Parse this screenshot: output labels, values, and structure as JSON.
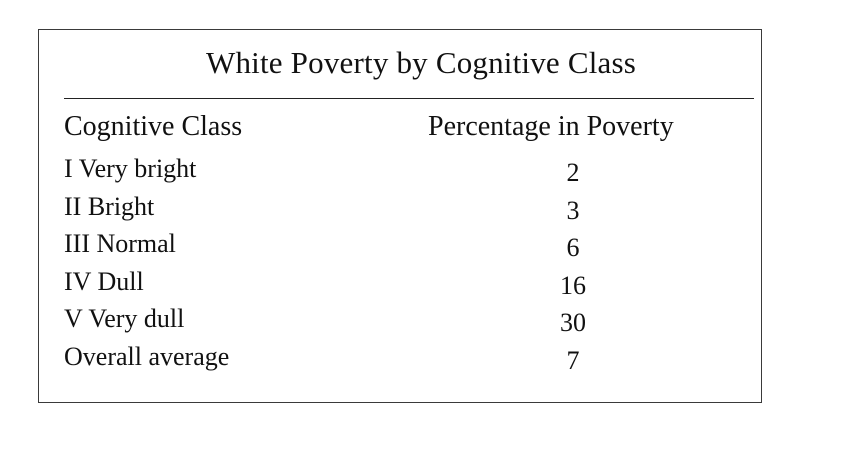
{
  "chart_data": {
    "type": "table",
    "title": "White Poverty by Cognitive Class",
    "columns": [
      "Cognitive Class",
      "Percentage in Poverty"
    ],
    "rows": [
      {
        "label": "I Very bright",
        "value": 2
      },
      {
        "label": "II Bright",
        "value": 3
      },
      {
        "label": "III Normal",
        "value": 6
      },
      {
        "label": "IV Dull",
        "value": 16
      },
      {
        "label": "V Very dull",
        "value": 30
      },
      {
        "label": "Overall average",
        "value": 7
      }
    ]
  }
}
